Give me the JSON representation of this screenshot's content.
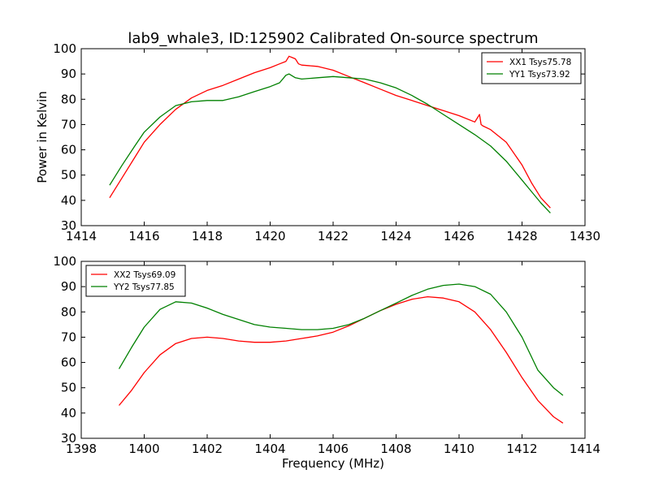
{
  "title": "lab9_whale3, ID:125902 Calibrated On-source spectrum",
  "chart_data": [
    {
      "type": "line",
      "ylabel": "Power in Kelvin",
      "xlabel": "",
      "xlim": [
        1414,
        1430
      ],
      "ylim": [
        30,
        100
      ],
      "xticks": [
        "1414",
        "1416",
        "1418",
        "1420",
        "1422",
        "1424",
        "1426",
        "1428",
        "1430"
      ],
      "yticks": [
        "30",
        "40",
        "50",
        "60",
        "70",
        "80",
        "90",
        "100"
      ],
      "legend": "top-right",
      "grid": false,
      "series": [
        {
          "name": "XX1 Tsys75.78",
          "color": "#ff0000",
          "x": [
            1414.9,
            1415.3,
            1415.7,
            1416.0,
            1416.5,
            1417.0,
            1417.5,
            1418.0,
            1418.5,
            1419.0,
            1419.5,
            1420.0,
            1420.3,
            1420.5,
            1420.6,
            1420.7,
            1420.8,
            1420.9,
            1421.0,
            1421.5,
            1422.0,
            1422.5,
            1423.0,
            1423.5,
            1424.0,
            1424.5,
            1425.0,
            1425.5,
            1426.0,
            1426.5,
            1426.65,
            1426.7,
            1426.75,
            1427.0,
            1427.5,
            1428.0,
            1428.3,
            1428.6,
            1428.9
          ],
          "y": [
            41,
            49,
            57,
            63,
            70,
            76,
            80.5,
            83.5,
            85.5,
            88,
            90.5,
            92.5,
            94,
            95,
            97,
            96.5,
            96,
            94,
            93.5,
            93,
            91.5,
            89,
            86.5,
            84,
            81.5,
            79.5,
            77.5,
            75.5,
            73.5,
            71,
            74,
            70,
            69.5,
            68,
            63,
            54,
            47,
            41,
            37
          ]
        },
        {
          "name": "YY1 Tsys73.92",
          "color": "#008000",
          "x": [
            1414.9,
            1415.3,
            1415.7,
            1416.0,
            1416.5,
            1417.0,
            1417.5,
            1418.0,
            1418.5,
            1419.0,
            1419.5,
            1420.0,
            1420.3,
            1420.5,
            1420.6,
            1420.8,
            1421.0,
            1421.5,
            1422.0,
            1422.5,
            1423.0,
            1423.5,
            1424.0,
            1424.5,
            1425.0,
            1425.5,
            1426.0,
            1426.5,
            1427.0,
            1427.5,
            1428.0,
            1428.3,
            1428.6,
            1428.9
          ],
          "y": [
            46,
            54,
            61.5,
            67,
            73,
            77.5,
            79,
            79.5,
            79.5,
            81,
            83,
            85,
            86.5,
            89.5,
            90,
            88.5,
            88,
            88.5,
            89,
            88.5,
            88,
            86.5,
            84.5,
            81.5,
            78,
            74,
            70,
            66,
            61.5,
            55.5,
            48,
            43.5,
            39,
            35
          ]
        }
      ]
    },
    {
      "type": "line",
      "ylabel": "",
      "xlabel": "Frequency (MHz)",
      "xlim": [
        1398,
        1414
      ],
      "ylim": [
        30,
        100
      ],
      "xticks": [
        "1398",
        "1400",
        "1402",
        "1404",
        "1406",
        "1408",
        "1410",
        "1412",
        "1414"
      ],
      "yticks": [
        "30",
        "40",
        "50",
        "60",
        "70",
        "80",
        "90",
        "100"
      ],
      "legend": "top-left",
      "grid": false,
      "series": [
        {
          "name": "XX2 Tsys69.09",
          "color": "#ff0000",
          "x": [
            1399.2,
            1399.6,
            1400.0,
            1400.5,
            1401.0,
            1401.5,
            1402.0,
            1402.5,
            1403.0,
            1403.5,
            1404.0,
            1404.5,
            1405.0,
            1405.5,
            1406.0,
            1406.5,
            1407.0,
            1407.5,
            1408.0,
            1408.5,
            1409.0,
            1409.5,
            1410.0,
            1410.5,
            1411.0,
            1411.5,
            1412.0,
            1412.5,
            1413.0,
            1413.3
          ],
          "y": [
            43,
            49,
            56,
            63,
            67.5,
            69.5,
            70,
            69.5,
            68.5,
            68,
            68,
            68.5,
            69.5,
            70.5,
            72,
            74.5,
            77.5,
            80.5,
            83,
            85,
            86,
            85.5,
            84,
            80,
            73,
            64,
            54,
            45,
            38.5,
            36
          ]
        },
        {
          "name": "YY2 Tsys77.85",
          "color": "#008000",
          "x": [
            1399.2,
            1399.6,
            1400.0,
            1400.5,
            1401.0,
            1401.5,
            1402.0,
            1402.5,
            1403.0,
            1403.5,
            1404.0,
            1404.5,
            1405.0,
            1405.5,
            1406.0,
            1406.5,
            1407.0,
            1407.5,
            1408.0,
            1408.5,
            1409.0,
            1409.5,
            1410.0,
            1410.5,
            1411.0,
            1411.5,
            1412.0,
            1412.5,
            1413.0,
            1413.3
          ],
          "y": [
            57.5,
            66,
            74,
            81,
            84,
            83.5,
            81.5,
            79,
            77,
            75,
            74,
            73.5,
            73,
            73,
            73.5,
            75,
            77.5,
            80.5,
            83.5,
            86.5,
            89,
            90.5,
            91,
            90,
            87,
            80,
            70,
            57,
            50,
            47
          ]
        }
      ]
    }
  ]
}
